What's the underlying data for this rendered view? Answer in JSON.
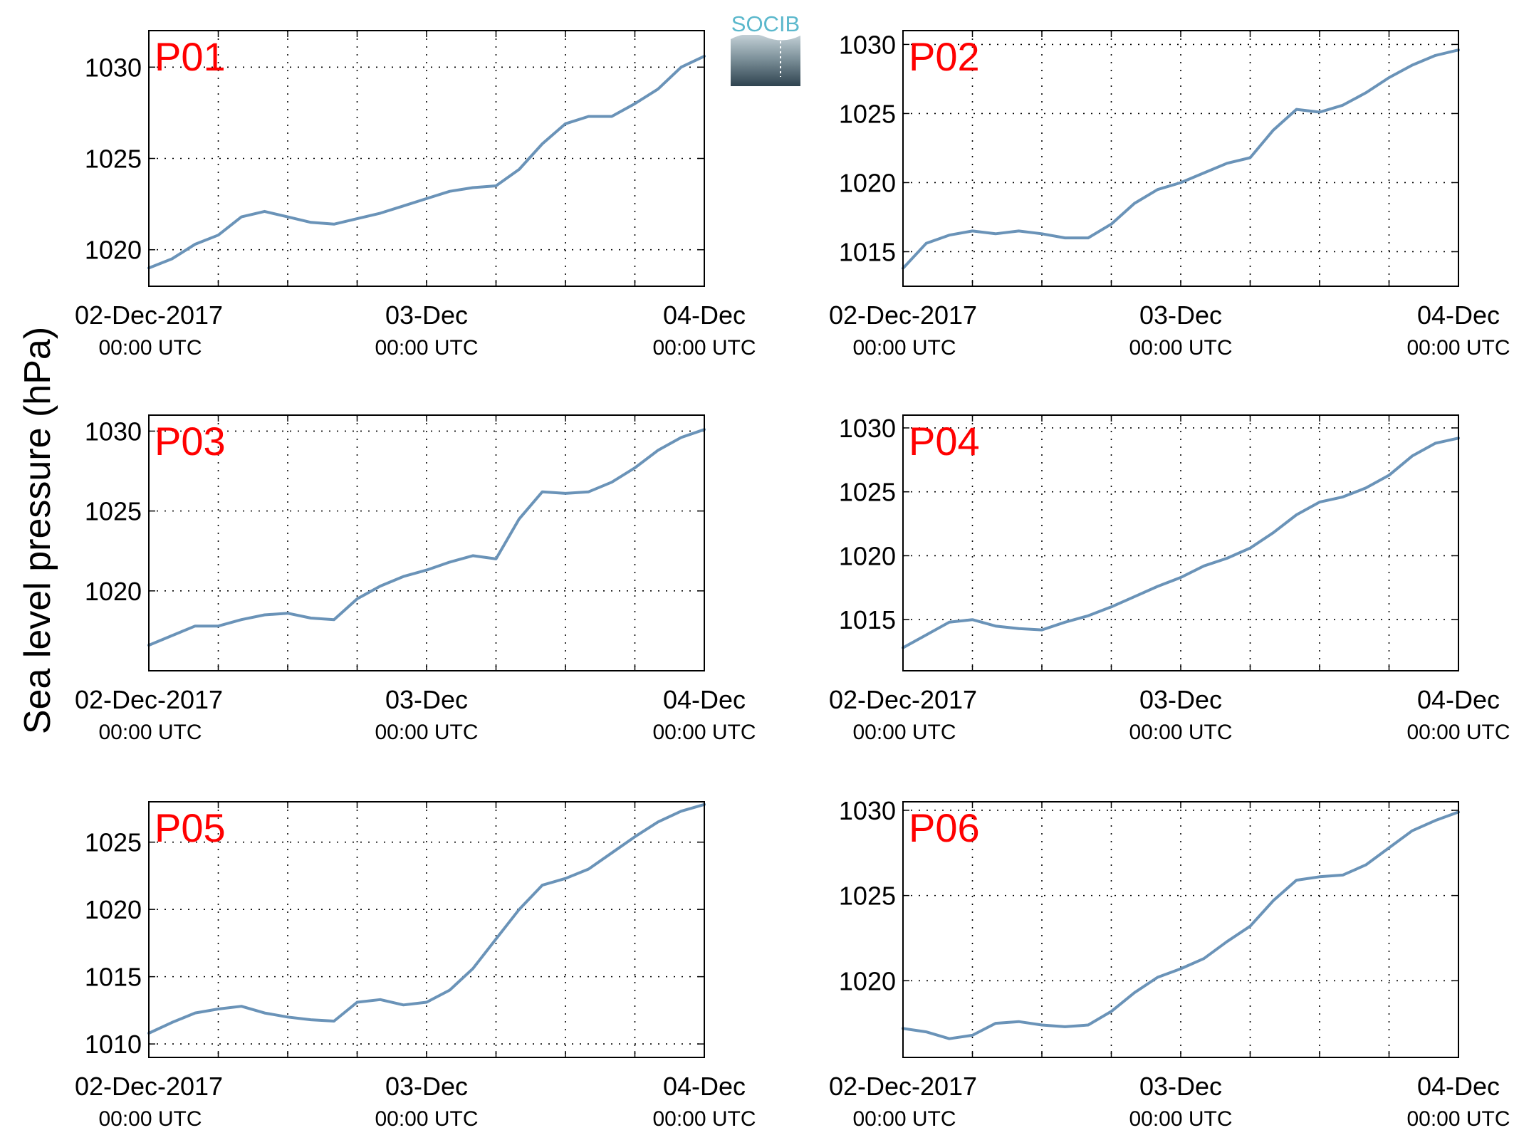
{
  "figure": {
    "ylabel": "Sea level pressure (hPa)",
    "logo_text": "SOCIB"
  },
  "colors": {
    "line": "#6a93b8",
    "panel_label": "#ff0000",
    "grid": "#000000",
    "logo_top": "#5bb8cc",
    "logo_bottom": "#2f434f"
  },
  "x_ticks": [
    {
      "date": "2017-12-02T00:00Z",
      "line1": "02-Dec-2017",
      "line2": "00:00 UTC"
    },
    {
      "date": "2017-12-03T00:00Z",
      "line1": "03-Dec",
      "line2": "00:00 UTC"
    },
    {
      "date": "2017-12-04T00:00Z",
      "line1": "04-Dec",
      "line2": "00:00 UTC"
    }
  ],
  "chart_data": [
    {
      "type": "line",
      "label": "P01",
      "xlim": [
        "2017-12-02T00:00Z",
        "2017-12-04T00:00Z"
      ],
      "ylim": [
        1018.0,
        1032.0
      ],
      "yticks": [
        1020,
        1025,
        1030
      ],
      "grid": true,
      "x_hours": [
        0,
        2,
        4,
        6,
        8,
        10,
        12,
        14,
        16,
        18,
        20,
        22,
        24,
        26,
        28,
        30,
        32,
        34,
        36,
        38,
        40,
        42,
        44,
        46,
        48
      ],
      "y": [
        1019.0,
        1019.5,
        1020.3,
        1020.8,
        1021.8,
        1022.1,
        1021.8,
        1021.5,
        1021.4,
        1021.7,
        1022.0,
        1022.4,
        1022.8,
        1023.2,
        1023.4,
        1023.5,
        1024.4,
        1025.8,
        1026.9,
        1027.3,
        1027.3,
        1028.0,
        1028.8,
        1030.0,
        1030.6
      ]
    },
    {
      "type": "line",
      "label": "P02",
      "xlim": [
        "2017-12-02T00:00Z",
        "2017-12-04T00:00Z"
      ],
      "ylim": [
        1012.5,
        1031.0
      ],
      "yticks": [
        1015,
        1020,
        1025,
        1030
      ],
      "grid": true,
      "x_hours": [
        0,
        2,
        4,
        6,
        8,
        10,
        12,
        14,
        16,
        18,
        20,
        22,
        24,
        26,
        28,
        30,
        32,
        34,
        36,
        38,
        40,
        42,
        44,
        46,
        48
      ],
      "y": [
        1013.8,
        1015.6,
        1016.2,
        1016.5,
        1016.3,
        1016.5,
        1016.3,
        1016.0,
        1016.0,
        1017.0,
        1018.5,
        1019.5,
        1020.0,
        1020.7,
        1021.4,
        1021.8,
        1023.8,
        1025.3,
        1025.1,
        1025.6,
        1026.5,
        1027.6,
        1028.5,
        1029.2,
        1029.6
      ]
    },
    {
      "type": "line",
      "label": "P03",
      "xlim": [
        "2017-12-02T00:00Z",
        "2017-12-04T00:00Z"
      ],
      "ylim": [
        1015.0,
        1031.0
      ],
      "yticks": [
        1020,
        1025,
        1030
      ],
      "grid": true,
      "x_hours": [
        0,
        2,
        4,
        6,
        8,
        10,
        12,
        14,
        16,
        18,
        20,
        22,
        24,
        26,
        28,
        30,
        32,
        34,
        36,
        38,
        40,
        42,
        44,
        46,
        48
      ],
      "y": [
        1016.6,
        1017.2,
        1017.8,
        1017.8,
        1018.2,
        1018.5,
        1018.6,
        1018.3,
        1018.2,
        1019.5,
        1020.3,
        1020.9,
        1021.3,
        1021.8,
        1022.2,
        1022.0,
        1024.5,
        1026.2,
        1026.1,
        1026.2,
        1026.8,
        1027.7,
        1028.8,
        1029.6,
        1030.1
      ]
    },
    {
      "type": "line",
      "label": "P04",
      "xlim": [
        "2017-12-02T00:00Z",
        "2017-12-04T00:00Z"
      ],
      "ylim": [
        1011.0,
        1031.0
      ],
      "yticks": [
        1015,
        1020,
        1025,
        1030
      ],
      "grid": true,
      "x_hours": [
        0,
        2,
        4,
        6,
        8,
        10,
        12,
        14,
        16,
        18,
        20,
        22,
        24,
        26,
        28,
        30,
        32,
        34,
        36,
        38,
        40,
        42,
        44,
        46,
        48
      ],
      "y": [
        1012.8,
        1013.8,
        1014.8,
        1015.0,
        1014.5,
        1014.3,
        1014.2,
        1014.8,
        1015.3,
        1016.0,
        1016.8,
        1017.6,
        1018.3,
        1019.2,
        1019.8,
        1020.6,
        1021.8,
        1023.2,
        1024.2,
        1024.6,
        1025.3,
        1026.3,
        1027.8,
        1028.8,
        1029.2
      ]
    },
    {
      "type": "line",
      "label": "P05",
      "xlim": [
        "2017-12-02T00:00Z",
        "2017-12-04T00:00Z"
      ],
      "ylim": [
        1009.0,
        1028.0
      ],
      "yticks": [
        1010,
        1015,
        1020,
        1025
      ],
      "grid": true,
      "x_hours": [
        0,
        2,
        4,
        6,
        8,
        10,
        12,
        14,
        16,
        18,
        20,
        22,
        24,
        26,
        28,
        30,
        32,
        34,
        36,
        38,
        40,
        42,
        44,
        46,
        48
      ],
      "y": [
        1010.8,
        1011.6,
        1012.3,
        1012.6,
        1012.8,
        1012.3,
        1012.0,
        1011.8,
        1011.7,
        1013.1,
        1013.3,
        1012.9,
        1013.1,
        1014.0,
        1015.6,
        1017.8,
        1020.0,
        1021.8,
        1022.3,
        1023.0,
        1024.2,
        1025.4,
        1026.5,
        1027.3,
        1027.8
      ]
    },
    {
      "type": "line",
      "label": "P06",
      "xlim": [
        "2017-12-02T00:00Z",
        "2017-12-04T00:00Z"
      ],
      "ylim": [
        1015.5,
        1030.5
      ],
      "yticks": [
        1020,
        1025,
        1030
      ],
      "grid": true,
      "x_hours": [
        0,
        2,
        4,
        6,
        8,
        10,
        12,
        14,
        16,
        18,
        20,
        22,
        24,
        26,
        28,
        30,
        32,
        34,
        36,
        38,
        40,
        42,
        44,
        46,
        48
      ],
      "y": [
        1017.2,
        1017.0,
        1016.6,
        1016.8,
        1017.5,
        1017.6,
        1017.4,
        1017.3,
        1017.4,
        1018.2,
        1019.3,
        1020.2,
        1020.7,
        1021.3,
        1022.3,
        1023.2,
        1024.7,
        1025.9,
        1026.1,
        1026.2,
        1026.8,
        1027.8,
        1028.8,
        1029.4,
        1029.9
      ]
    }
  ]
}
